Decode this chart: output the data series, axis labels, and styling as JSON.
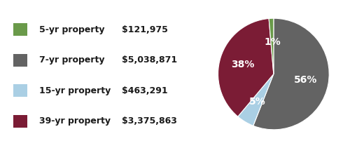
{
  "labels": [
    "5-yr property",
    "7-yr property",
    "15-yr property",
    "39-yr property"
  ],
  "values": [
    121975,
    5038871,
    463291,
    3375863
  ],
  "colors": [
    "#6a9a4a",
    "#636363",
    "#aacfe4",
    "#7b1c35"
  ],
  "pie_order": [
    1,
    2,
    3,
    0
  ],
  "pie_colors": [
    "#636363",
    "#aacfe4",
    "#7b1c35",
    "#6a9a4a"
  ],
  "pie_values": [
    5038871,
    463291,
    3375863,
    121975
  ],
  "pct_labels": [
    "56%",
    "5%",
    "38%",
    "1%"
  ],
  "legend_values": [
    "$121,975",
    "$5,038,871",
    "$463,291",
    "$3,375,863"
  ],
  "text_color": "#ffffff",
  "label_fontsize": 9,
  "pct_fontsize": 10,
  "background_color": "#ffffff",
  "legend_label_color": "#1a1a1a"
}
